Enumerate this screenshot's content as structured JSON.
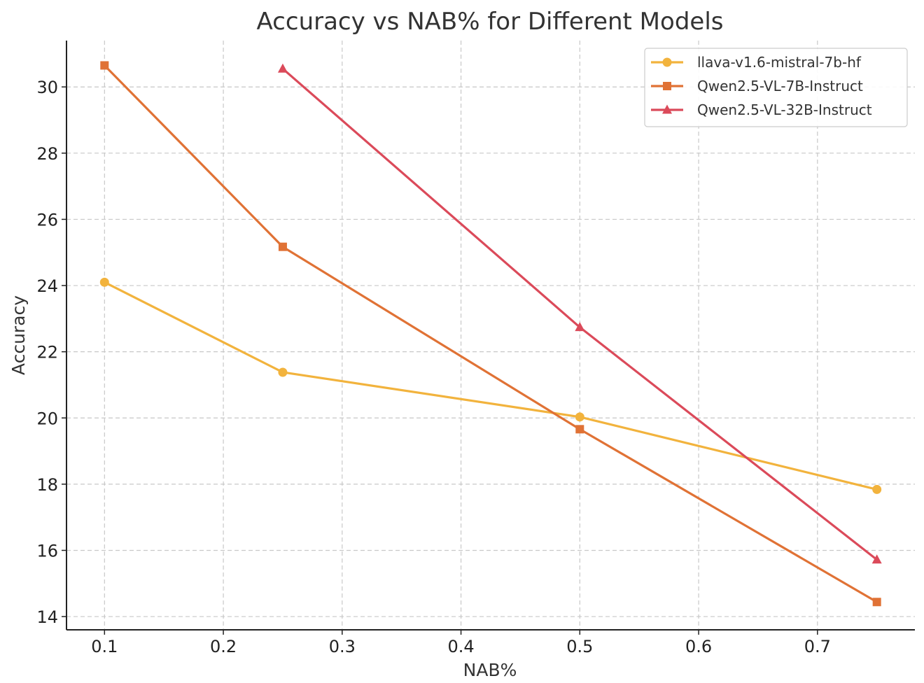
{
  "chart_data": {
    "type": "line",
    "title": "Accuracy vs NAB% for Different Models",
    "xlabel": "NAB%",
    "ylabel": "Accuracy",
    "xlim": [
      0.068,
      0.782
    ],
    "ylim": [
      13.6,
      31.4
    ],
    "xticks": [
      0.1,
      0.2,
      0.3,
      0.4,
      0.5,
      0.6,
      0.7
    ],
    "xtick_labels": [
      "0.1",
      "0.2",
      "0.3",
      "0.4",
      "0.5",
      "0.6",
      "0.7"
    ],
    "yticks": [
      14,
      16,
      18,
      20,
      22,
      24,
      26,
      28,
      30
    ],
    "ytick_labels": [
      "14",
      "16",
      "18",
      "20",
      "22",
      "24",
      "26",
      "28",
      "30"
    ],
    "grid": true,
    "legend_position": "top-right",
    "series": [
      {
        "name": "llava-v1.6-mistral-7b-hf",
        "color": "#F2B33D",
        "marker": "circle",
        "x": [
          0.1,
          0.25,
          0.5,
          0.75
        ],
        "y": [
          24.1,
          21.38,
          20.03,
          17.84
        ]
      },
      {
        "name": "Qwen2.5-VL-7B-Instruct",
        "color": "#E07235",
        "marker": "square",
        "x": [
          0.1,
          0.25,
          0.5,
          0.75
        ],
        "y": [
          30.65,
          25.17,
          19.66,
          14.44
        ]
      },
      {
        "name": "Qwen2.5-VL-32B-Instruct",
        "color": "#DB4A5A",
        "marker": "triangle",
        "x": [
          0.25,
          0.5,
          0.75
        ],
        "y": [
          30.55,
          22.74,
          15.72
        ]
      }
    ]
  }
}
